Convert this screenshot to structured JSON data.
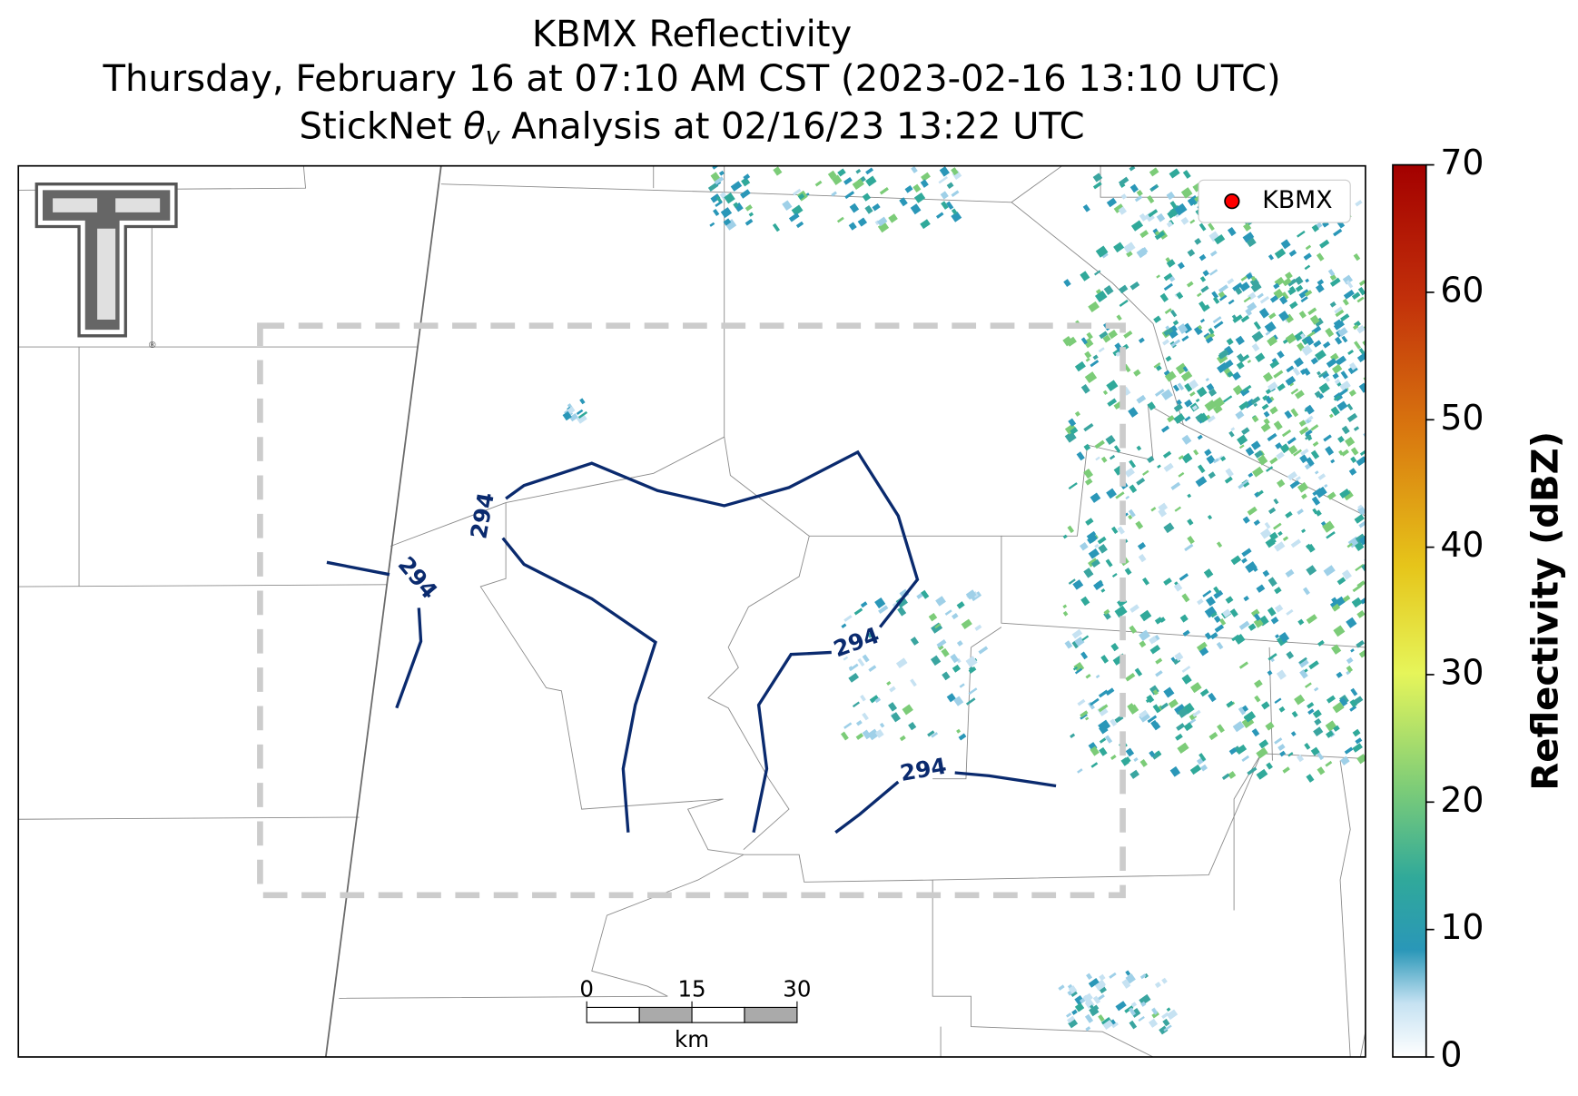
{
  "title": {
    "line1": "KBMX Reflectivity",
    "line2": "Thursday, February 16 at 07:10 AM CST (2023-02-16 13:10 UTC)",
    "line3": {
      "before": "StickNet ",
      "symbol": "θ",
      "subscript": "v",
      "after": " Analysis at 02/16/23 13:22 UTC"
    }
  },
  "legend": {
    "label": "KBMX",
    "color": "#ff0000"
  },
  "contours": {
    "labels": [
      "294",
      "294",
      "294",
      "294"
    ],
    "color": "#0a2a6e"
  },
  "colorbar": {
    "label": "Reflectivity (dBZ)",
    "lim": [
      0,
      70
    ],
    "ticks": [
      0,
      10,
      20,
      30,
      40,
      50,
      60,
      70
    ]
  },
  "scale_bar": {
    "ticks": [
      0,
      15,
      30
    ],
    "unit": "km"
  }
}
